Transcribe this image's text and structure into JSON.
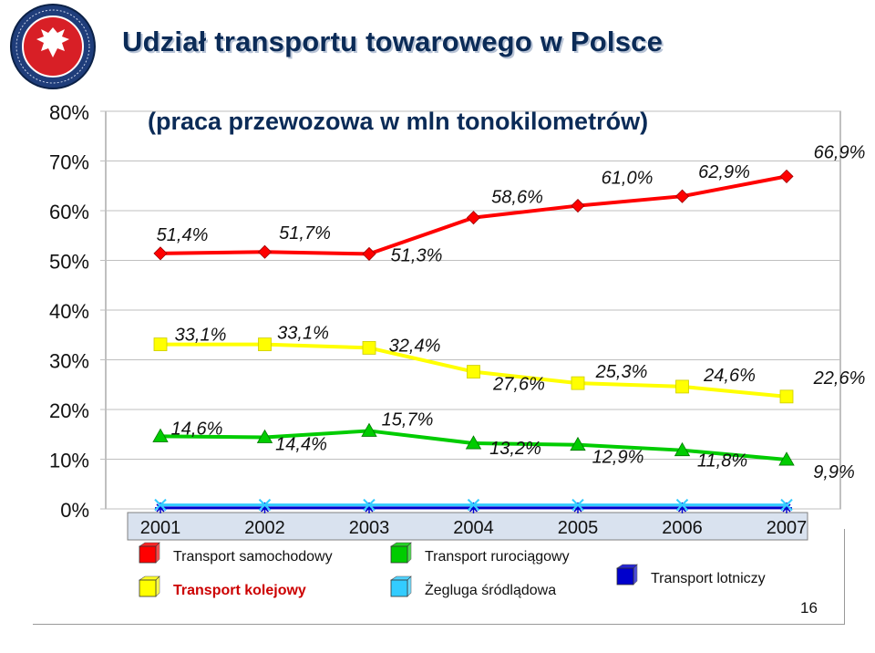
{
  "slide": {
    "title": "Udział transportu towarowego w Polsce",
    "page_number": "16",
    "logo_text": "STOWARZYSZENIE TRANSPORTU KOLEJOWEGO"
  },
  "chart_data": {
    "type": "line",
    "subtitle": "(praca przewozowa w mln tonokilometrów)",
    "categories": [
      "2001",
      "2002",
      "2003",
      "2004",
      "2005",
      "2006",
      "2007"
    ],
    "ylim": [
      0,
      80
    ],
    "yticks": [
      "0%",
      "10%",
      "20%",
      "30%",
      "40%",
      "50%",
      "60%",
      "70%",
      "80%"
    ],
    "grid": true,
    "legend_position": "bottom",
    "series": [
      {
        "name": "Transport samochodowy",
        "color": "#ff0000",
        "marker": "diamond",
        "values": [
          51.4,
          51.7,
          51.3,
          58.6,
          61.0,
          62.9,
          66.9
        ],
        "labels": [
          "51,4%",
          "51,7%",
          "51,3%",
          "58,6%",
          "61,0%",
          "62,9%",
          "66,9%"
        ]
      },
      {
        "name": "Transport kolejowy",
        "color": "#ffff00",
        "marker": "square",
        "values": [
          33.1,
          33.1,
          32.4,
          27.6,
          25.3,
          24.6,
          22.6
        ],
        "labels": [
          "33,1%",
          "33,1%",
          "32,4%",
          "27,6%",
          "25,3%",
          "24,6%",
          "22,6%"
        ]
      },
      {
        "name": "Transport rurociągowy",
        "color": "#00cc00",
        "marker": "triangle",
        "values": [
          14.6,
          14.4,
          15.7,
          13.2,
          12.9,
          11.8,
          9.9
        ],
        "labels": [
          "14,6%",
          "14,4%",
          "15,7%",
          "13,2%",
          "12,9%",
          "11,8%",
          "9,9%"
        ]
      },
      {
        "name": "Żegluga śródlądowa",
        "color": "#33ccff",
        "marker": "x",
        "values": [
          0.8,
          0.8,
          0.8,
          0.8,
          0.8,
          0.8,
          0.8
        ],
        "labels": []
      },
      {
        "name": "Transport lotniczy",
        "color": "#0000cc",
        "marker": "star",
        "values": [
          0.2,
          0.2,
          0.2,
          0.2,
          0.2,
          0.2,
          0.2
        ],
        "labels": []
      }
    ]
  }
}
